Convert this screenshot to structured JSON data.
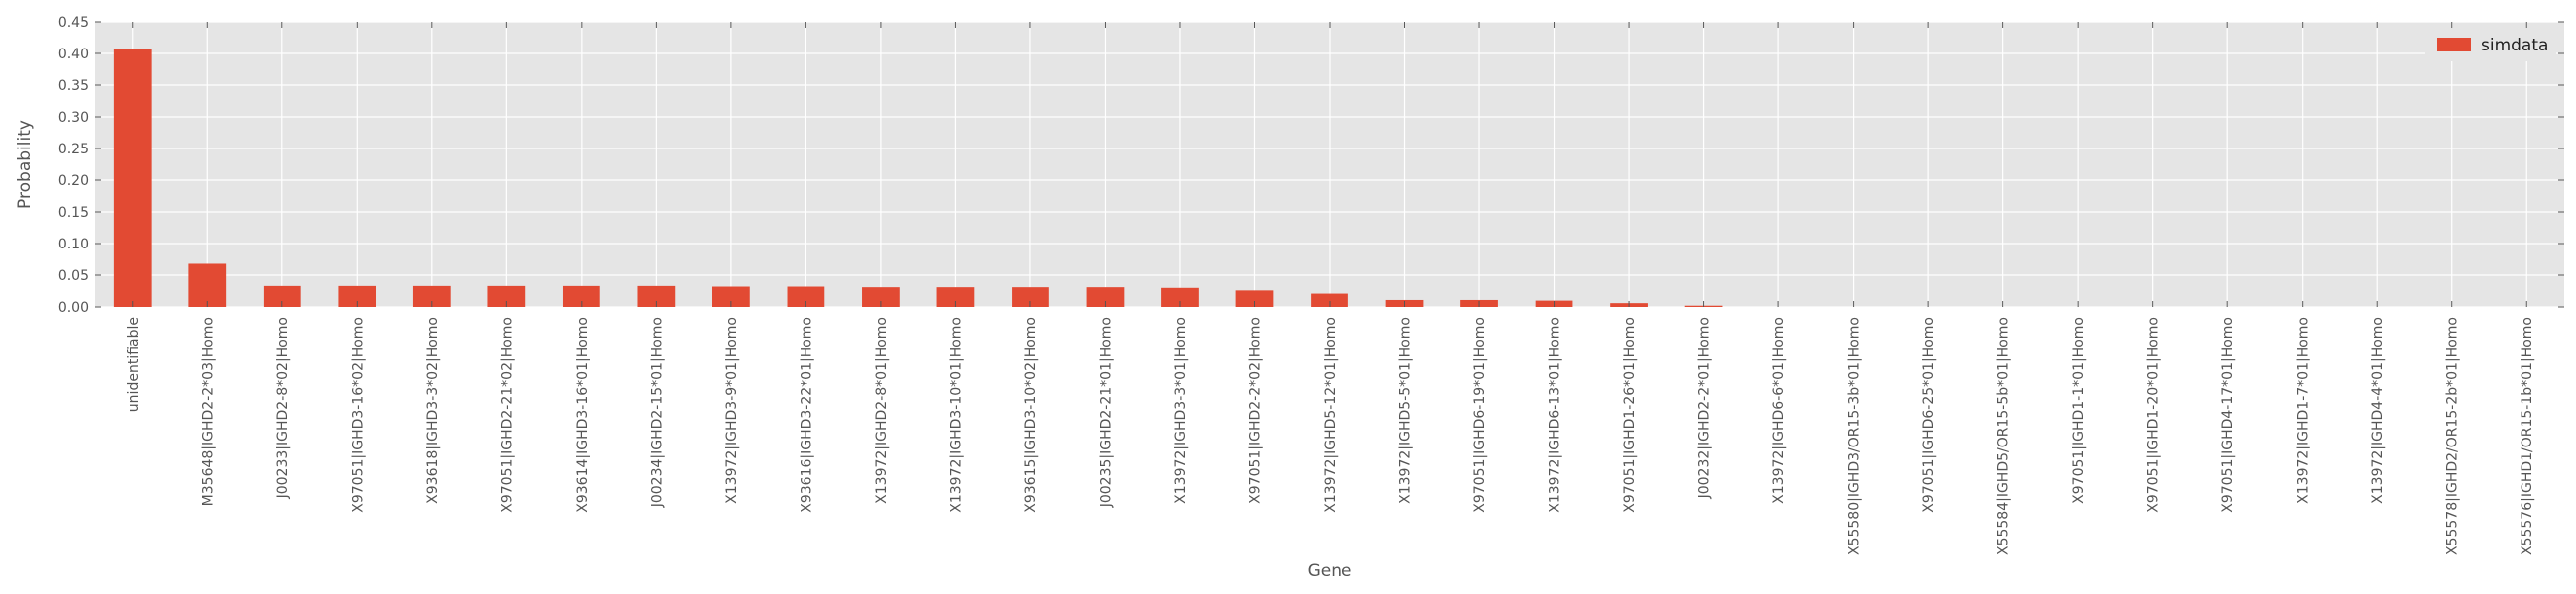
{
  "chart_data": {
    "type": "bar",
    "title": "",
    "xlabel": "Gene",
    "ylabel": "Probability",
    "ylim": [
      0,
      0.45
    ],
    "yticks": [
      0.0,
      0.05,
      0.1,
      0.15,
      0.2,
      0.25,
      0.3,
      0.35,
      0.4,
      0.45
    ],
    "ytick_labels": [
      "0.00",
      "0.05",
      "0.10",
      "0.15",
      "0.20",
      "0.25",
      "0.30",
      "0.35",
      "0.40",
      "0.45"
    ],
    "grid": true,
    "legend_position": "top-right",
    "categories": [
      "unidentifiable",
      "M35648|IGHD2-2*03|Homo",
      "J00233|IGHD2-8*02|Homo",
      "X97051|IGHD3-16*02|Homo",
      "X93618|IGHD3-3*02|Homo",
      "X97051|IGHD2-21*02|Homo",
      "X93614|IGHD3-16*01|Homo",
      "J00234|IGHD2-15*01|Homo",
      "X13972|IGHD3-9*01|Homo",
      "X93616|IGHD3-22*01|Homo",
      "X13972|IGHD2-8*01|Homo",
      "X13972|IGHD3-10*01|Homo",
      "X93615|IGHD3-10*02|Homo",
      "J00235|IGHD2-21*01|Homo",
      "X13972|IGHD3-3*01|Homo",
      "X97051|IGHD2-2*02|Homo",
      "X13972|IGHD5-12*01|Homo",
      "X13972|IGHD5-5*01|Homo",
      "X97051|IGHD6-19*01|Homo",
      "X13972|IGHD6-13*01|Homo",
      "X97051|IGHD1-26*01|Homo",
      "J00232|IGHD2-2*01|Homo",
      "X13972|IGHD6-6*01|Homo",
      "X55580|IGHD3/OR15-3b*01|Homo",
      "X97051|IGHD6-25*01|Homo",
      "X55584|IGHD5/OR15-5b*01|Homo",
      "X97051|IGHD1-1*01|Homo",
      "X97051|IGHD1-20*01|Homo",
      "X97051|IGHD4-17*01|Homo",
      "X13972|IGHD1-7*01|Homo",
      "X13972|IGHD4-4*01|Homo",
      "X55578|IGHD2/OR15-2b*01|Homo",
      "X55576|IGHD1/OR15-1b*01|Homo"
    ],
    "series": [
      {
        "name": "simdata",
        "color": "#e24a33",
        "values": [
          0.407,
          0.068,
          0.033,
          0.033,
          0.033,
          0.033,
          0.033,
          0.033,
          0.032,
          0.032,
          0.031,
          0.031,
          0.031,
          0.031,
          0.03,
          0.026,
          0.021,
          0.011,
          0.011,
          0.01,
          0.006,
          0.002,
          0,
          0,
          0,
          0,
          0,
          0,
          0,
          0,
          0,
          0,
          0
        ]
      }
    ],
    "colors": {
      "plot_background": "#e5e5e5",
      "grid": "#ffffff",
      "bar": "#e24a33"
    }
  }
}
